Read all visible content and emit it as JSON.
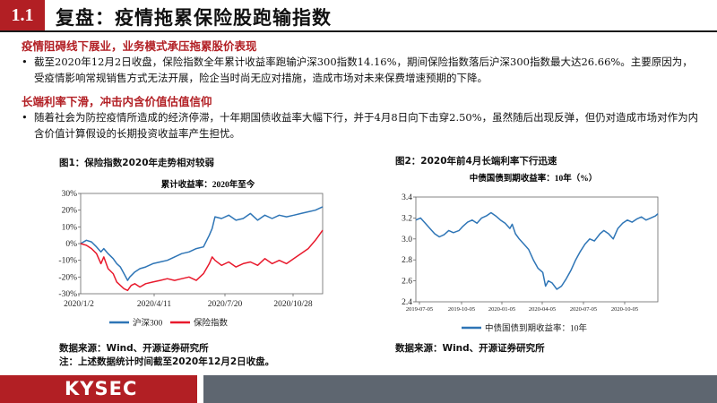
{
  "header": {
    "section_number": "1.1",
    "title": "复盘：疫情拖累保险股跑输指数"
  },
  "sections": [
    {
      "heading": "疫情阻碍线下展业，业务模式承压拖累股价表现",
      "bullet": "截至2020年12月2日收盘，保险指数全年累计收益率跑输沪深300指数14.16%，期间保险指数落后沪深300指数最大达26.66%。主要原因为，受疫情影响常规销售方式无法开展，险企当时尚无应对措施，造成市场对未来保费增速预期的下降。"
    },
    {
      "heading": "长端利率下滑，冲击内含价值估值信仰",
      "bullet": "随着社会为防控疫情所造成的经济停滞，十年期国债收益率大幅下行，并于4月8日向下击穿2.50%，虽然随后出现反弹，但仍对造成市场对作为内含价值计算假设的长期投资收益率产生担忧。"
    }
  ],
  "figure1": {
    "caption": "图1：保险指数2020年走势相对较弱",
    "source": "数据来源：Wind、开源证券研究所",
    "note": "注：上述数据统计时间截至2020年12月2日收盘。"
  },
  "figure2": {
    "caption": "图2：2020年前4月长端利率下行迅速",
    "source": "数据来源：Wind、开源证券研究所"
  },
  "chart_data": [
    {
      "type": "line",
      "title": "累计收益率：2020年至今",
      "x_tick_labels": [
        "2020/1/2",
        "2020/4/11",
        "2020/7/20",
        "2020/10/28"
      ],
      "y_tick_labels": [
        "30%",
        "20%",
        "10%",
        "0%",
        "-10%",
        "-20%",
        "-30%"
      ],
      "ylim": [
        -30,
        30
      ],
      "x_range": [
        0,
        335
      ],
      "series": [
        {
          "name": "沪深300",
          "color": "#2e75b6",
          "points": [
            [
              0,
              0
            ],
            [
              8,
              2
            ],
            [
              15,
              1
            ],
            [
              22,
              -2
            ],
            [
              28,
              -5
            ],
            [
              32,
              -3
            ],
            [
              38,
              -6
            ],
            [
              45,
              -9
            ],
            [
              50,
              -12
            ],
            [
              55,
              -14
            ],
            [
              60,
              -18
            ],
            [
              65,
              -22
            ],
            [
              68,
              -20
            ],
            [
              75,
              -17
            ],
            [
              82,
              -15
            ],
            [
              90,
              -14
            ],
            [
              100,
              -12
            ],
            [
              110,
              -11
            ],
            [
              120,
              -10
            ],
            [
              130,
              -8
            ],
            [
              140,
              -6
            ],
            [
              150,
              -5
            ],
            [
              160,
              -3
            ],
            [
              170,
              -2
            ],
            [
              178,
              5
            ],
            [
              182,
              9
            ],
            [
              186,
              16
            ],
            [
              195,
              15
            ],
            [
              205,
              17
            ],
            [
              215,
              14
            ],
            [
              225,
              15
            ],
            [
              235,
              18
            ],
            [
              245,
              14
            ],
            [
              255,
              17
            ],
            [
              265,
              15
            ],
            [
              275,
              17
            ],
            [
              285,
              16
            ],
            [
              295,
              17
            ],
            [
              305,
              18
            ],
            [
              315,
              19
            ],
            [
              325,
              20
            ],
            [
              335,
              22
            ]
          ]
        },
        {
          "name": "保险指数",
          "color": "#e8192c",
          "points": [
            [
              0,
              0
            ],
            [
              8,
              -1
            ],
            [
              15,
              -3
            ],
            [
              22,
              -6
            ],
            [
              28,
              -12
            ],
            [
              32,
              -8
            ],
            [
              38,
              -15
            ],
            [
              45,
              -18
            ],
            [
              50,
              -23
            ],
            [
              55,
              -25
            ],
            [
              60,
              -27
            ],
            [
              65,
              -28
            ],
            [
              70,
              -25
            ],
            [
              75,
              -24
            ],
            [
              82,
              -26
            ],
            [
              90,
              -24
            ],
            [
              100,
              -23
            ],
            [
              110,
              -22
            ],
            [
              120,
              -21
            ],
            [
              130,
              -22
            ],
            [
              140,
              -21
            ],
            [
              150,
              -20
            ],
            [
              160,
              -22
            ],
            [
              170,
              -18
            ],
            [
              178,
              -12
            ],
            [
              182,
              -8
            ],
            [
              186,
              -10
            ],
            [
              195,
              -13
            ],
            [
              205,
              -11
            ],
            [
              215,
              -14
            ],
            [
              225,
              -12
            ],
            [
              235,
              -11
            ],
            [
              245,
              -13
            ],
            [
              255,
              -9
            ],
            [
              265,
              -12
            ],
            [
              275,
              -10
            ],
            [
              285,
              -12
            ],
            [
              295,
              -9
            ],
            [
              305,
              -6
            ],
            [
              315,
              -3
            ],
            [
              325,
              2
            ],
            [
              330,
              5
            ],
            [
              335,
              8
            ]
          ]
        }
      ]
    },
    {
      "type": "line",
      "title": "中债国债到期收益率：10年（%）",
      "x_tick_labels": [
        "2019-07-05",
        "2019-10-05",
        "2020-01-05",
        "2020-04-05",
        "2020-07-05",
        "2020-10-05"
      ],
      "y_tick_labels": [
        "3.4",
        "3.2",
        "3.0",
        "2.8",
        "2.6",
        "2.4"
      ],
      "ylim": [
        2.4,
        3.4
      ],
      "x_range": [
        0,
        515
      ],
      "series": [
        {
          "name": "中债国债到期收益率：10年",
          "color": "#2e75b6",
          "points": [
            [
              0,
              3.18
            ],
            [
              10,
              3.2
            ],
            [
              20,
              3.15
            ],
            [
              30,
              3.1
            ],
            [
              40,
              3.05
            ],
            [
              50,
              3.02
            ],
            [
              60,
              3.04
            ],
            [
              70,
              3.08
            ],
            [
              80,
              3.06
            ],
            [
              92,
              3.08
            ],
            [
              100,
              3.12
            ],
            [
              110,
              3.16
            ],
            [
              120,
              3.18
            ],
            [
              130,
              3.15
            ],
            [
              140,
              3.2
            ],
            [
              150,
              3.22
            ],
            [
              160,
              3.25
            ],
            [
              170,
              3.22
            ],
            [
              180,
              3.18
            ],
            [
              190,
              3.15
            ],
            [
              200,
              3.1
            ],
            [
              205,
              3.14
            ],
            [
              212,
              3.05
            ],
            [
              220,
              3.0
            ],
            [
              230,
              2.95
            ],
            [
              240,
              2.9
            ],
            [
              250,
              2.8
            ],
            [
              260,
              2.72
            ],
            [
              270,
              2.68
            ],
            [
              276,
              2.55
            ],
            [
              282,
              2.6
            ],
            [
              290,
              2.58
            ],
            [
              300,
              2.52
            ],
            [
              310,
              2.55
            ],
            [
              320,
              2.62
            ],
            [
              330,
              2.7
            ],
            [
              340,
              2.8
            ],
            [
              350,
              2.88
            ],
            [
              360,
              2.95
            ],
            [
              370,
              3.0
            ],
            [
              380,
              2.98
            ],
            [
              392,
              3.05
            ],
            [
              400,
              3.08
            ],
            [
              410,
              3.05
            ],
            [
              420,
              3.0
            ],
            [
              430,
              3.1
            ],
            [
              440,
              3.15
            ],
            [
              450,
              3.18
            ],
            [
              460,
              3.16
            ],
            [
              470,
              3.19
            ],
            [
              480,
              3.21
            ],
            [
              490,
              3.18
            ],
            [
              500,
              3.2
            ],
            [
              510,
              3.22
            ],
            [
              515,
              3.24
            ]
          ]
        }
      ]
    }
  ],
  "footer": {
    "logo": "KYSEC"
  }
}
